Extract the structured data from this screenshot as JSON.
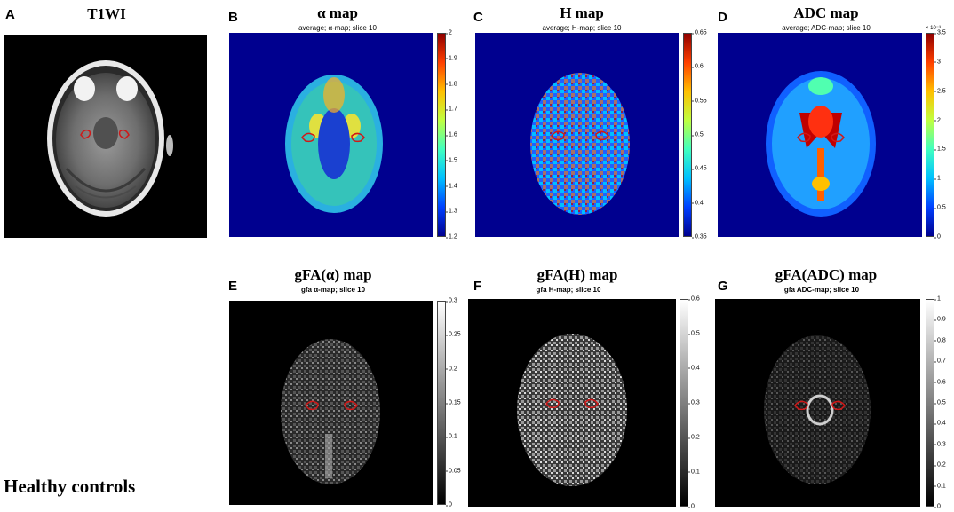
{
  "panels": {
    "A": {
      "letter": "A",
      "title": "T1WI"
    },
    "B": {
      "letter": "B",
      "title": "α map",
      "subtitle": "average; α-map; slice 10",
      "ticks": [
        "2",
        "1.9",
        "1.8",
        "1.7",
        "1.6",
        "1.5",
        "1.4",
        "1.3",
        "1.2"
      ]
    },
    "C": {
      "letter": "C",
      "title": "H map",
      "subtitle": "average; H-map; slice 10",
      "ticks": [
        "0.65",
        "0.6",
        "0.55",
        "0.5",
        "0.45",
        "0.4",
        "0.35"
      ]
    },
    "D": {
      "letter": "D",
      "title": "ADC map",
      "subtitle": "average; ADC-map; slice 10",
      "exponent": "× 10⁻³",
      "ticks": [
        "3.5",
        "3",
        "2.5",
        "2",
        "1.5",
        "1",
        "0.5",
        "0"
      ]
    },
    "E": {
      "letter": "E",
      "title": "gFA(α) map",
      "subtitle": "gfa α-map; slice 10",
      "ticks": [
        "0.3",
        "0.25",
        "0.2",
        "0.15",
        "0.1",
        "0.05",
        "0"
      ]
    },
    "F": {
      "letter": "F",
      "title": "gFA(H) map",
      "subtitle": "gfa H-map; slice 10",
      "ticks": [
        "0.6",
        "0.5",
        "0.4",
        "0.3",
        "0.2",
        "0.1",
        "0"
      ]
    },
    "G": {
      "letter": "G",
      "title": "gFA(ADC) map",
      "subtitle": "gfa ADC-map; slice 10",
      "ticks": [
        "1",
        "0.9",
        "0.8",
        "0.7",
        "0.6",
        "0.5",
        "0.4",
        "0.3",
        "0.2",
        "0.1",
        "0"
      ]
    }
  },
  "group_label": "Healthy controls",
  "colors": {
    "jet_background": "#00008f",
    "roi_outline": "#d01818",
    "gray_background": "#000000"
  }
}
